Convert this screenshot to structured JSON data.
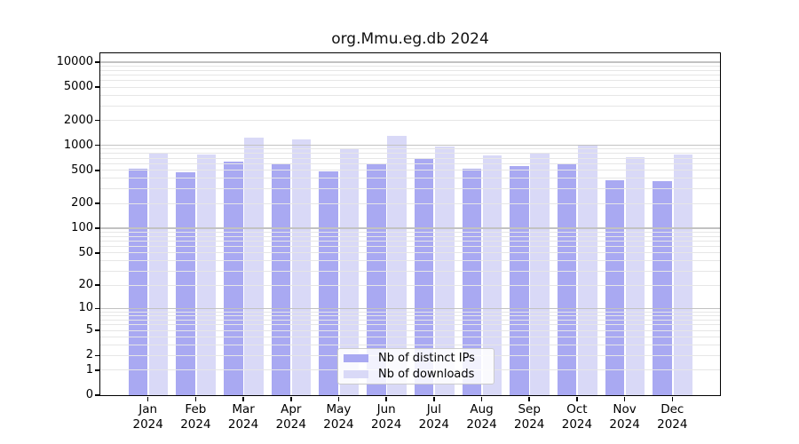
{
  "chart_data": {
    "type": "bar",
    "title": "org.Mmu.eg.db 2024",
    "categories": [
      "Jan",
      "Feb",
      "Mar",
      "Apr",
      "May",
      "Jun",
      "Jul",
      "Aug",
      "Sep",
      "Oct",
      "Nov",
      "Dec"
    ],
    "category_year_line": "2024",
    "series": [
      {
        "name": "Nb of distinct IPs",
        "color": "#a9a9f2",
        "values": [
          530,
          480,
          640,
          610,
          490,
          600,
          700,
          530,
          560,
          600,
          380,
          370
        ]
      },
      {
        "name": "Nb of downloads",
        "color": "#d9d9f7",
        "values": [
          820,
          780,
          1240,
          1170,
          900,
          1290,
          970,
          760,
          790,
          1030,
          730,
          780
        ]
      }
    ],
    "yscale": "log10(value+1)",
    "ytick_labels": [
      10000,
      5000,
      2000,
      1000,
      500,
      200,
      100,
      50,
      20,
      10,
      5,
      2,
      1,
      0
    ],
    "ylim": [
      0,
      12800
    ],
    "grid": true,
    "grid_minor_color": "#e6e6e6",
    "grid_major_color": "#c2c2c2",
    "axis_color": "#000000",
    "legend_position": "lower center"
  }
}
